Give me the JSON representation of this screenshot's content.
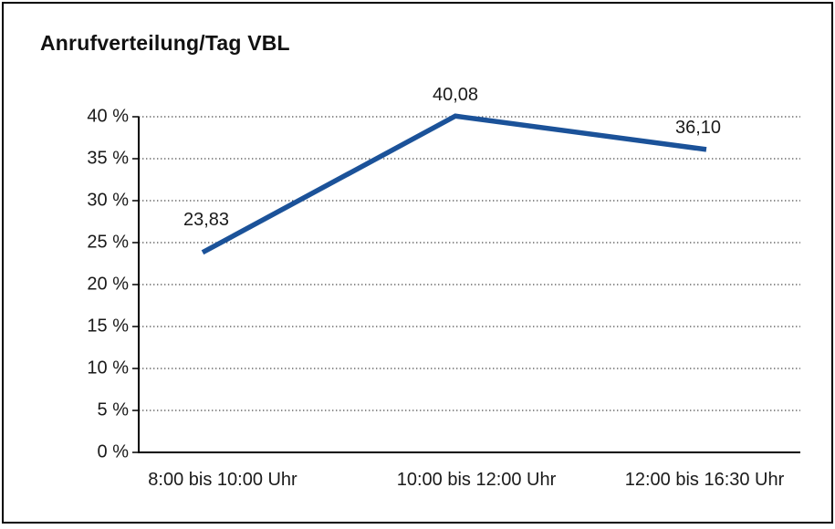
{
  "chart": {
    "title": "Anrufverteilung/Tag VBL"
  },
  "chart_data": {
    "type": "line",
    "title": "Anrufverteilung/Tag VBL",
    "categories": [
      "8:00 bis 10:00 Uhr",
      "10:00 bis 12:00 Uhr",
      "12:00 bis 16:30 Uhr"
    ],
    "values": [
      23.83,
      40.08,
      36.1
    ],
    "data_labels": [
      "23,83",
      "40,08",
      "36,10"
    ],
    "ylabel": "%",
    "ylim": [
      0,
      40
    ],
    "ytick_step": 5,
    "yticks": [
      {
        "value": 0,
        "label": "0 %"
      },
      {
        "value": 5,
        "label": "5 %"
      },
      {
        "value": 10,
        "label": "10 %"
      },
      {
        "value": 15,
        "label": "15 %"
      },
      {
        "value": 20,
        "label": "20 %"
      },
      {
        "value": 25,
        "label": "25 %"
      },
      {
        "value": 30,
        "label": "30 %"
      },
      {
        "value": 35,
        "label": "35 %"
      },
      {
        "value": 40,
        "label": "40 %"
      }
    ],
    "grid": "dotted horizontal",
    "legend": "none",
    "line_color": "#1b5299",
    "axis_color": "#000000",
    "gridline_color": "#4a4a4a",
    "text_color": "#1a1a1a"
  }
}
